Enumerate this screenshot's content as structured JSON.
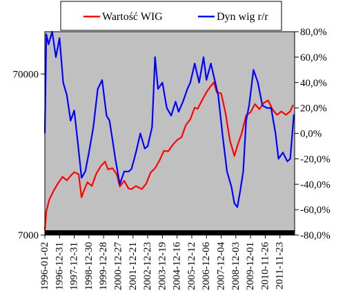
{
  "chart_data": {
    "type": "line",
    "title": "",
    "xlabel": "",
    "ylabel_left": "",
    "ylabel_right": "",
    "background": "#c0c0c0",
    "grid": false,
    "legend_position": "top",
    "x_tick_labels": [
      "1996-01-02",
      "1996-12-31",
      "1997-12-31",
      "1998-12-30",
      "1999-12-28",
      "2000-12-27",
      "2001-12-21",
      "2002-12-23",
      "2003-12-19",
      "2004-12-16",
      "2005-12-12",
      "2006-12-06",
      "2007-12-04",
      "2008-12-03",
      "2009-12-01",
      "2010-11-26",
      "2011-11-23"
    ],
    "x_range": [
      1996.0,
      2013.0
    ],
    "left_axis": {
      "scale": "log",
      "range": [
        7000,
        128000
      ],
      "tick_values": [
        7000,
        70000
      ],
      "tick_labels": [
        "7000",
        "70000"
      ]
    },
    "right_axis": {
      "scale": "linear",
      "range": [
        -80,
        80
      ],
      "tick_values": [
        80,
        60,
        40,
        20,
        0,
        -20,
        -40,
        -60,
        -80
      ],
      "tick_labels": [
        "80,0%",
        "60,0%",
        "40,0%",
        "20,0%",
        "0,0%",
        "-20,0%",
        "-40,0%",
        "-60,0%",
        "-80,0%"
      ]
    },
    "series": [
      {
        "name": "Wartość WIG",
        "color": "#ff0000",
        "axis": "left",
        "x": [
          1996.0,
          1996.1,
          1996.3,
          1996.6,
          1996.9,
          1997.2,
          1997.5,
          1997.8,
          1998.0,
          1998.3,
          1998.5,
          1998.7,
          1998.9,
          1999.2,
          1999.5,
          1999.8,
          2000.1,
          2000.3,
          2000.6,
          2000.9,
          2001.1,
          2001.4,
          2001.7,
          2001.9,
          2002.2,
          2002.6,
          2002.9,
          2003.2,
          2003.5,
          2003.8,
          2004.1,
          2004.4,
          2004.7,
          2005.0,
          2005.3,
          2005.6,
          2005.9,
          2006.2,
          2006.4,
          2006.7,
          2007.0,
          2007.3,
          2007.5,
          2007.7,
          2008.0,
          2008.3,
          2008.6,
          2008.9,
          2009.1,
          2009.4,
          2009.7,
          2010.0,
          2010.3,
          2010.6,
          2010.9,
          2011.2,
          2011.5,
          2011.8,
          2012.1,
          2012.4,
          2012.7,
          2012.9
        ],
        "values": [
          7500,
          9800,
          11600,
          13200,
          14700,
          16100,
          15300,
          16500,
          17200,
          16700,
          12000,
          13500,
          14900,
          14100,
          16800,
          18700,
          20000,
          17900,
          18200,
          16600,
          14000,
          15200,
          13600,
          13500,
          14100,
          13500,
          14600,
          17100,
          18200,
          20300,
          23300,
          23200,
          25400,
          27200,
          28300,
          33700,
          36600,
          43300,
          42500,
          48000,
          53900,
          59000,
          62000,
          54000,
          53000,
          40000,
          27000,
          21700,
          25000,
          30000,
          38700,
          40500,
          45500,
          42300,
          46300,
          48000,
          42000,
          39000,
          41000,
          39000,
          41000,
          45000
        ]
      },
      {
        "name": "Dyn wig r/r",
        "color": "#0000ff",
        "axis": "right",
        "x": [
          1996.0,
          1996.1,
          1996.25,
          1996.5,
          1996.75,
          1997.0,
          1997.25,
          1997.5,
          1997.75,
          1998.0,
          1998.25,
          1998.5,
          1998.75,
          1999.0,
          1999.3,
          1999.6,
          1999.9,
          2000.2,
          2000.4,
          2000.6,
          2000.8,
          2001.1,
          2001.4,
          2001.7,
          2001.9,
          2002.2,
          2002.5,
          2002.8,
          2003.0,
          2003.3,
          2003.5,
          2003.7,
          2004.0,
          2004.3,
          2004.6,
          2004.9,
          2005.1,
          2005.4,
          2005.7,
          2005.9,
          2006.2,
          2006.5,
          2006.8,
          2007.0,
          2007.3,
          2007.6,
          2007.8,
          2008.1,
          2008.4,
          2008.7,
          2008.9,
          2009.1,
          2009.3,
          2009.5,
          2009.7,
          2009.9,
          2010.2,
          2010.5,
          2010.8,
          2011.1,
          2011.4,
          2011.7,
          2011.9,
          2012.2,
          2012.5,
          2012.7,
          2012.95
        ],
        "values": [
          0,
          78,
          70,
          80,
          60,
          75,
          40,
          30,
          10,
          18,
          -8,
          -35,
          -30,
          -15,
          5,
          35,
          42,
          14,
          10,
          -5,
          -20,
          -40,
          -30,
          -30,
          -28,
          -15,
          0,
          -12,
          -10,
          5,
          60,
          35,
          40,
          20,
          14,
          25,
          17,
          25,
          35,
          40,
          55,
          40,
          60,
          42,
          55,
          40,
          30,
          -2,
          -30,
          -42,
          -55,
          -58,
          -45,
          -30,
          10,
          22,
          50,
          40,
          22,
          20,
          20,
          0,
          -20,
          -15,
          -22,
          -20,
          15
        ]
      }
    ]
  }
}
